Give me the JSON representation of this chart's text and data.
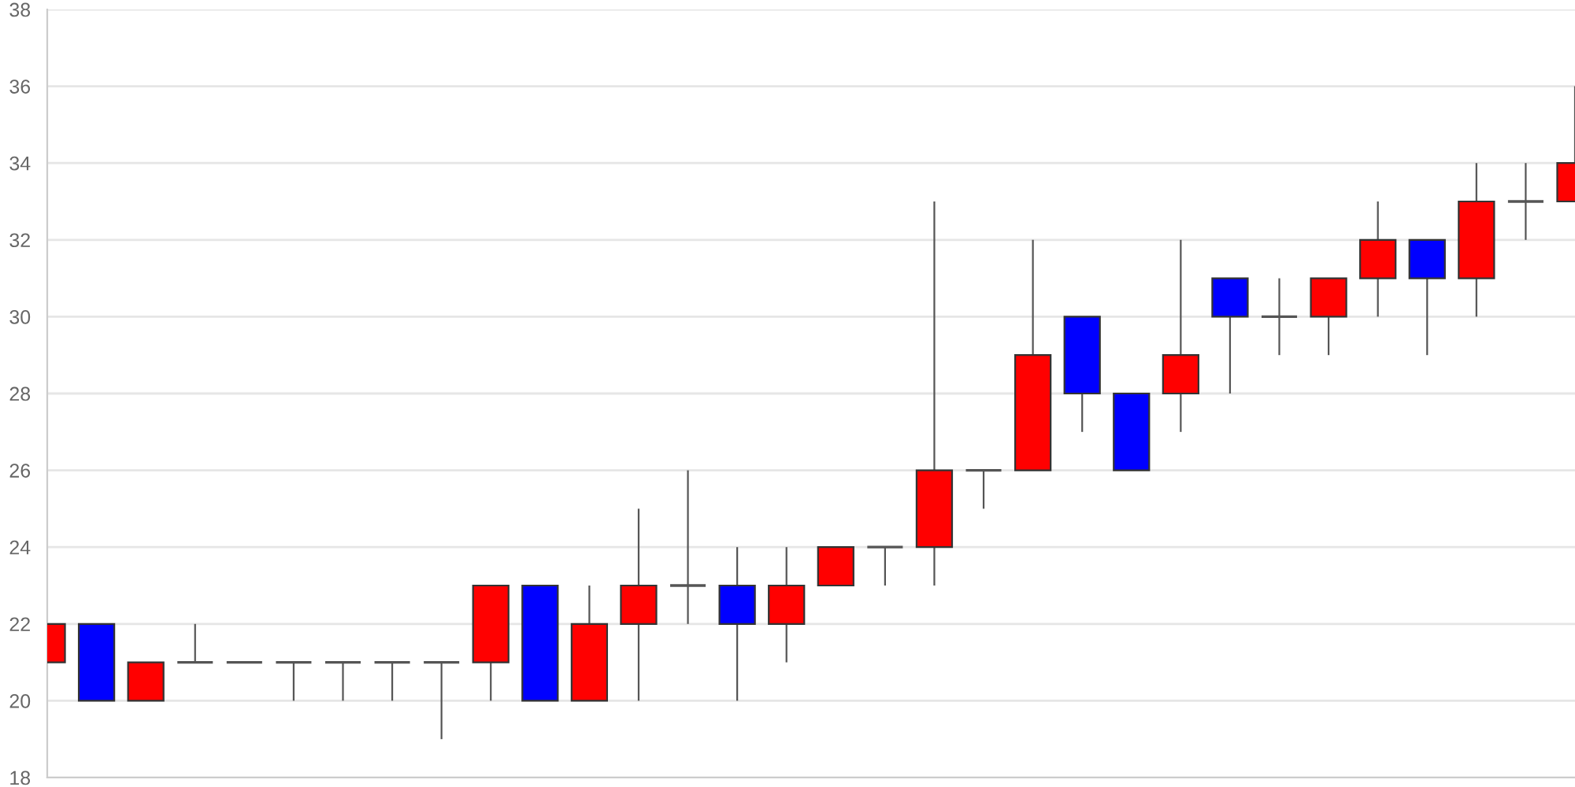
{
  "chart_data": {
    "type": "candlestick",
    "categories": [
      null,
      null,
      null,
      null,
      null,
      null,
      null,
      null,
      null,
      null,
      null,
      null,
      null,
      null,
      null,
      null,
      null,
      null,
      null,
      null,
      null,
      null,
      null,
      null,
      null,
      null,
      null,
      null,
      null,
      null,
      null,
      null
    ],
    "ohlc": [
      [
        21,
        22,
        21,
        22
      ],
      [
        22,
        22,
        20,
        20
      ],
      [
        20,
        21,
        20,
        21
      ],
      [
        21,
        22,
        21,
        21
      ],
      [
        21,
        21,
        21,
        21
      ],
      [
        21,
        21,
        20,
        21
      ],
      [
        21,
        21,
        20,
        21
      ],
      [
        21,
        21,
        20,
        21
      ],
      [
        21,
        21,
        19,
        21
      ],
      [
        21,
        23,
        20,
        23
      ],
      [
        23,
        23,
        20,
        20
      ],
      [
        20,
        23,
        20,
        22
      ],
      [
        22,
        25,
        20,
        23
      ],
      [
        23,
        26,
        22,
        23
      ],
      [
        23,
        24,
        20,
        22
      ],
      [
        22,
        24,
        21,
        23
      ],
      [
        23,
        24,
        23,
        24
      ],
      [
        24,
        24,
        23,
        24
      ],
      [
        24,
        33,
        23,
        26
      ],
      [
        26,
        26,
        25,
        26
      ],
      [
        26,
        32,
        26,
        29
      ],
      [
        30,
        30,
        27,
        28
      ],
      [
        28,
        28,
        26,
        26
      ],
      [
        28,
        32,
        27,
        29
      ],
      [
        31,
        31,
        28,
        30
      ],
      [
        30,
        31,
        29,
        30
      ],
      [
        30,
        31,
        29,
        31
      ],
      [
        31,
        33,
        30,
        32
      ],
      [
        32,
        32,
        29,
        31
      ],
      [
        31,
        34,
        30,
        33
      ],
      [
        33,
        34,
        32,
        33
      ],
      [
        33,
        36,
        33,
        34
      ]
    ],
    "colors": [
      "#ff0000",
      "#0000ff",
      "#ff0000",
      "#555555",
      "#555555",
      "#555555",
      "#555555",
      "#555555",
      "#555555",
      "#ff0000",
      "#0000ff",
      "#ff0000",
      "#ff0000",
      "#555555",
      "#0000ff",
      "#ff0000",
      "#ff0000",
      "#555555",
      "#ff0000",
      "#555555",
      "#ff0000",
      "#0000ff",
      "#0000ff",
      "#ff0000",
      "#0000ff",
      "#555555",
      "#ff0000",
      "#ff0000",
      "#0000ff",
      "#ff0000",
      "#555555",
      "#ff0000"
    ],
    "ylim": [
      18,
      38
    ],
    "yticks": [
      18,
      20,
      22,
      24,
      26,
      28,
      30,
      32,
      34,
      36,
      38
    ],
    "grid": "y",
    "tick_labels": "y"
  }
}
